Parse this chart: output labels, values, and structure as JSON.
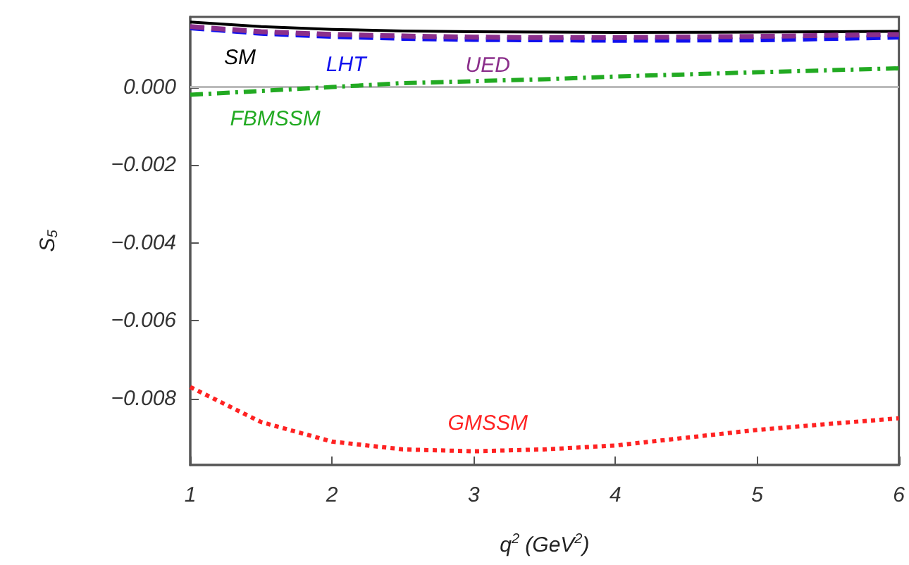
{
  "chart_data": {
    "type": "line",
    "xlabel": "q$^{2}$ (GeV$^{2}$)",
    "ylabel": "S$_{5}$",
    "x": [
      1,
      1.5,
      2,
      2.5,
      3,
      3.5,
      4,
      5,
      6
    ],
    "series": [
      {
        "name": "SM",
        "color": "#000000",
        "line_style": "solid",
        "values": [
          0.00167,
          0.00155,
          0.00148,
          0.00144,
          0.00142,
          0.00141,
          0.0014,
          0.00141,
          0.00143
        ]
      },
      {
        "name": "LHT",
        "color": "#1010ee",
        "line_style": "dashed",
        "values": [
          0.00152,
          0.00138,
          0.0013,
          0.00125,
          0.00122,
          0.00121,
          0.0012,
          0.00121,
          0.00128
        ]
      },
      {
        "name": "UED",
        "color": "#8b2f8b",
        "line_style": "dashed",
        "values": [
          0.00155,
          0.00142,
          0.00135,
          0.00131,
          0.00128,
          0.00127,
          0.00127,
          0.0013,
          0.00135
        ]
      },
      {
        "name": "FBMSSM",
        "color": "#22aa22",
        "line_style": "dashdot",
        "values": [
          -0.0002,
          -0.0001,
          0.0,
          0.0001,
          0.00015,
          0.0002,
          0.00027,
          0.00038,
          0.00048
        ]
      },
      {
        "name": "GMSSM",
        "color": "#ff2222",
        "line_style": "dotted",
        "values": [
          -0.0077,
          -0.0086,
          -0.0091,
          -0.0093,
          -0.00935,
          -0.0093,
          -0.0092,
          -0.0088,
          -0.0085
        ]
      }
    ],
    "ref_lines": [
      {
        "axis": "y",
        "value": 0,
        "color": "#bbbbbb"
      }
    ],
    "xlim": [
      1,
      6
    ],
    "xticks": [
      1,
      2,
      3,
      4,
      5,
      6
    ],
    "ylim": [
      -0.0097,
      0.0018
    ],
    "yticks": [
      {
        "value": -0.008,
        "label": "−0.008"
      },
      {
        "value": -0.006,
        "label": "−0.006"
      },
      {
        "value": -0.004,
        "label": "−0.004"
      },
      {
        "value": -0.002,
        "label": "−0.002"
      },
      {
        "value": 0,
        "label": "0.000"
      }
    ],
    "grid": false,
    "legend": false,
    "marker": "none"
  }
}
